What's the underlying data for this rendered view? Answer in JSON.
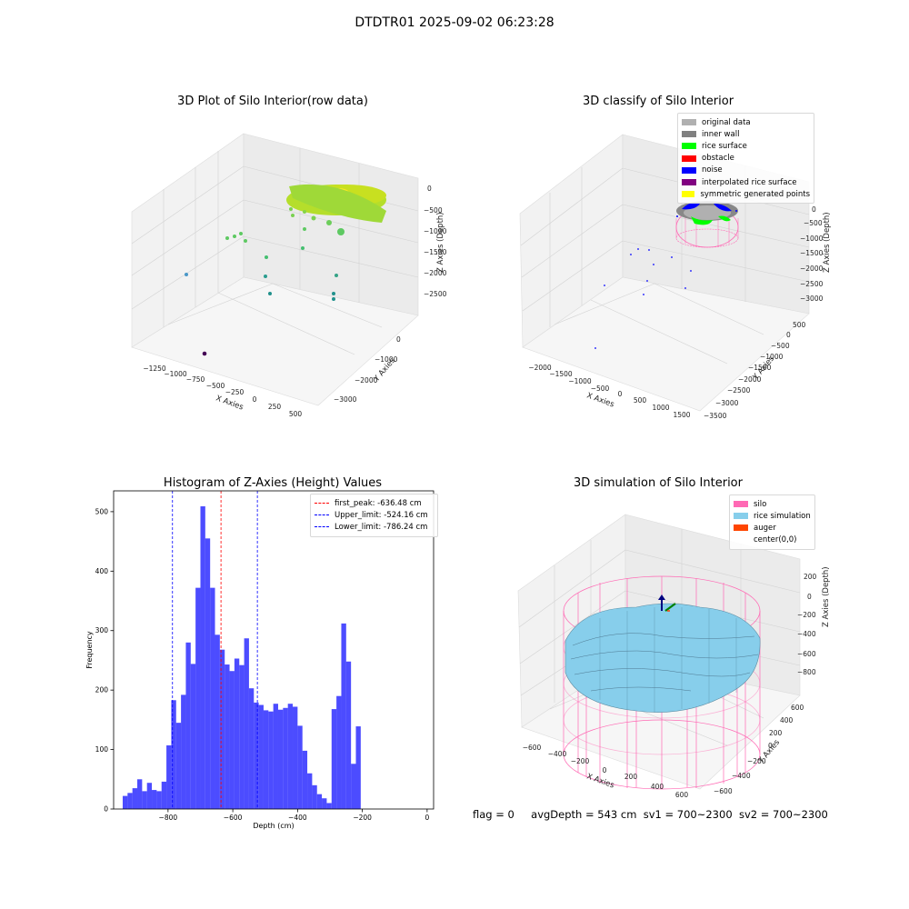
{
  "suptitle": "DTDTR01 2025-09-02 06:23:28",
  "colors": {
    "bar": "#0000ff",
    "first_peak_line": "#ff0000",
    "limit_lines": "#0000ff",
    "silo": "#ff69b4",
    "rice_simulation": "#87ceeb",
    "auger": "#ff4500"
  },
  "chart_data": [
    {
      "type": "scatter",
      "title": "3D Plot of Silo Interior(row data)",
      "xlabel": "X Axies",
      "ylabel": "Y Axies",
      "zlabel": "Z Axies (Depth)",
      "x_ticks": [
        "−1250",
        "−1000",
        "−750",
        "−500",
        "−250",
        "0",
        "250",
        "500"
      ],
      "y_ticks": [
        "−3000",
        "−2000",
        "−1000",
        "0"
      ],
      "z_ticks": [
        "−2500",
        "−2000",
        "−1500",
        "−1000",
        "−500",
        "0"
      ]
    },
    {
      "type": "scatter",
      "title": "3D classify of Silo Interior",
      "xlabel": "X Axies",
      "ylabel": "Y Axies",
      "zlabel": "Z Axies (Depth)",
      "x_ticks": [
        "−2000",
        "−1500",
        "−1000",
        "−500",
        "0",
        "500",
        "1000",
        "1500"
      ],
      "y_ticks": [
        "−3500",
        "−3000",
        "−2500",
        "−2000",
        "−1500",
        "−1000",
        "−500",
        "0",
        "500"
      ],
      "z_ticks": [
        "−3000",
        "−2500",
        "−2000",
        "−1500",
        "−1000",
        "−500",
        "0"
      ],
      "legend": [
        {
          "label": "original data",
          "color": "#b0b0b0"
        },
        {
          "label": "inner wall",
          "color": "#808080"
        },
        {
          "label": "rice surface",
          "color": "#00ff00"
        },
        {
          "label": "obstacle",
          "color": "#ff0000"
        },
        {
          "label": "noise",
          "color": "#0000ff"
        },
        {
          "label": "interpolated rice surface",
          "color": "#800080"
        },
        {
          "label": "symmetric generated points",
          "color": "#ffff00"
        }
      ]
    },
    {
      "type": "bar",
      "title": "Histogram of Z-Axies (Height) Values",
      "xlabel": "Depth (cm)",
      "ylabel": "Frequency",
      "xlim": [
        -968,
        20
      ],
      "ylim": [
        0,
        535
      ],
      "x_ticks": [
        -800,
        -600,
        -400,
        -200,
        0
      ],
      "x_tick_labels": [
        "−800",
        "−600",
        "−400",
        "−200",
        "0"
      ],
      "y_ticks": [
        0,
        100,
        200,
        300,
        400,
        500
      ],
      "bin_start": -940,
      "bin_width": 15,
      "values": [
        22,
        27,
        35,
        50,
        30,
        44,
        32,
        30,
        46,
        107,
        183,
        145,
        192,
        280,
        244,
        372,
        509,
        455,
        372,
        293,
        268,
        243,
        232,
        253,
        242,
        287,
        203,
        179,
        175,
        166,
        164,
        177,
        167,
        170,
        177,
        172,
        140,
        98,
        60,
        40,
        25,
        18,
        10,
        168,
        190,
        312,
        248,
        76,
        139
      ],
      "lines": [
        {
          "label": "first_peak: -636.48 cm",
          "x": -636.48,
          "color": "#ff0000"
        },
        {
          "label": "Upper_limit: -524.16 cm",
          "x": -524.16,
          "color": "#0000ff"
        },
        {
          "label": "Lower_limit: -786.24 cm",
          "x": -786.24,
          "color": "#0000ff"
        }
      ]
    },
    {
      "type": "area",
      "title": "3D simulation of Silo Interior",
      "xlabel": "X Axies",
      "ylabel": "Y Axies",
      "zlabel": "Z Axies (Depth)",
      "x_ticks": [
        "−600",
        "−400",
        "−200",
        "0",
        "200",
        "400",
        "600"
      ],
      "y_ticks": [
        "−600",
        "−400",
        "−200",
        "0",
        "200",
        "400",
        "600"
      ],
      "z_ticks": [
        "−800",
        "−600",
        "−400",
        "−200",
        "0",
        "200"
      ],
      "legend": [
        {
          "label": "silo",
          "color": "#ff69b4"
        },
        {
          "label": "rice simulation",
          "color": "#87ceeb"
        },
        {
          "label": "auger",
          "color": "#ff4500"
        },
        {
          "label": "center(0,0)",
          "color": ""
        }
      ]
    }
  ],
  "footer": {
    "flag": "flag = 0",
    "avg": "avgDepth = 543 cm",
    "sv1": "sv1 = 700~2300",
    "sv2": "sv2 = 700~2300"
  }
}
